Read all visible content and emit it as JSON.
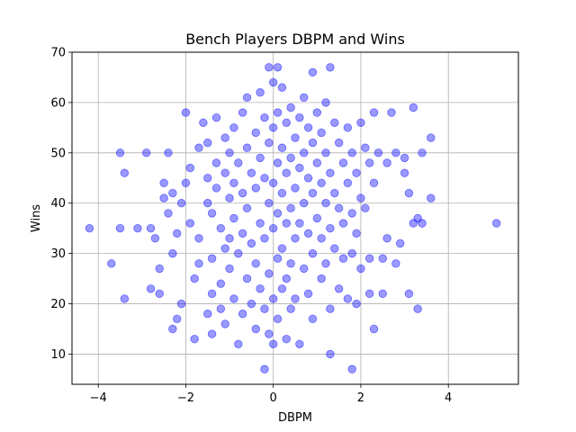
{
  "chart_data": {
    "type": "scatter",
    "title": "Bench Players DBPM and Wins",
    "xlabel": "DBPM",
    "ylabel": "Wins",
    "xlim": [
      -4.6,
      5.6
    ],
    "ylim": [
      4,
      70
    ],
    "xticks": [
      -4,
      -2,
      0,
      2,
      4
    ],
    "yticks": [
      10,
      20,
      30,
      40,
      50,
      60,
      70
    ],
    "grid": true,
    "point_color": "#0000ff",
    "point_opacity": 0.4,
    "points": [
      [
        -4.2,
        35
      ],
      [
        -3.7,
        28
      ],
      [
        -3.5,
        35
      ],
      [
        -3.4,
        21
      ],
      [
        -3.4,
        46
      ],
      [
        -3.5,
        50
      ],
      [
        -3.1,
        35
      ],
      [
        -2.9,
        50
      ],
      [
        -2.8,
        35
      ],
      [
        -2.8,
        23
      ],
      [
        -2.7,
        33
      ],
      [
        -2.6,
        22
      ],
      [
        -2.6,
        27
      ],
      [
        -2.5,
        44
      ],
      [
        -2.5,
        41
      ],
      [
        -2.4,
        38
      ],
      [
        -2.4,
        50
      ],
      [
        -2.3,
        42
      ],
      [
        -2.3,
        30
      ],
      [
        -2.3,
        15
      ],
      [
        -2.2,
        17
      ],
      [
        -2.2,
        34
      ],
      [
        -2.1,
        40
      ],
      [
        -2.1,
        20
      ],
      [
        -2.0,
        44
      ],
      [
        -2.0,
        58
      ],
      [
        -1.9,
        47
      ],
      [
        -1.9,
        36
      ],
      [
        -1.8,
        25
      ],
      [
        -1.8,
        13
      ],
      [
        -1.7,
        51
      ],
      [
        -1.7,
        28
      ],
      [
        -1.7,
        33
      ],
      [
        -1.6,
        56
      ],
      [
        -1.5,
        52
      ],
      [
        -1.5,
        45
      ],
      [
        -1.5,
        40
      ],
      [
        -1.5,
        18
      ],
      [
        -1.4,
        38
      ],
      [
        -1.4,
        29
      ],
      [
        -1.4,
        22
      ],
      [
        -1.4,
        14
      ],
      [
        -1.3,
        57
      ],
      [
        -1.3,
        48
      ],
      [
        -1.3,
        43
      ],
      [
        -1.2,
        35
      ],
      [
        -1.2,
        24
      ],
      [
        -1.2,
        19
      ],
      [
        -1.1,
        53
      ],
      [
        -1.1,
        46
      ],
      [
        -1.1,
        31
      ],
      [
        -1.1,
        16
      ],
      [
        -1.0,
        50
      ],
      [
        -1.0,
        41
      ],
      [
        -1.0,
        27
      ],
      [
        -1.0,
        33
      ],
      [
        -0.9,
        55
      ],
      [
        -0.9,
        44
      ],
      [
        -0.9,
        37
      ],
      [
        -0.9,
        21
      ],
      [
        -0.8,
        48
      ],
      [
        -0.8,
        30
      ],
      [
        -0.8,
        12
      ],
      [
        -0.7,
        58
      ],
      [
        -0.7,
        42
      ],
      [
        -0.7,
        34
      ],
      [
        -0.7,
        18
      ],
      [
        -0.6,
        61
      ],
      [
        -0.6,
        51
      ],
      [
        -0.6,
        39
      ],
      [
        -0.6,
        25
      ],
      [
        -0.5,
        46
      ],
      [
        -0.5,
        32
      ],
      [
        -0.5,
        20
      ],
      [
        -0.4,
        54
      ],
      [
        -0.4,
        43
      ],
      [
        -0.4,
        28
      ],
      [
        -0.4,
        15
      ],
      [
        -0.3,
        62
      ],
      [
        -0.3,
        49
      ],
      [
        -0.3,
        36
      ],
      [
        -0.3,
        23
      ],
      [
        -0.2,
        57
      ],
      [
        -0.2,
        45
      ],
      [
        -0.2,
        33
      ],
      [
        -0.2,
        19
      ],
      [
        -0.1,
        67
      ],
      [
        -0.1,
        52
      ],
      [
        -0.1,
        40
      ],
      [
        -0.1,
        26
      ],
      [
        -0.1,
        14
      ],
      [
        0.0,
        64
      ],
      [
        0.0,
        55
      ],
      [
        0.0,
        44
      ],
      [
        0.0,
        35
      ],
      [
        0.0,
        21
      ],
      [
        0.0,
        12
      ],
      [
        -0.2,
        7
      ],
      [
        0.1,
        67
      ],
      [
        0.1,
        58
      ],
      [
        0.1,
        48
      ],
      [
        0.1,
        38
      ],
      [
        0.1,
        29
      ],
      [
        0.1,
        17
      ],
      [
        0.2,
        63
      ],
      [
        0.2,
        51
      ],
      [
        0.2,
        42
      ],
      [
        0.2,
        31
      ],
      [
        0.2,
        23
      ],
      [
        0.3,
        56
      ],
      [
        0.3,
        46
      ],
      [
        0.3,
        36
      ],
      [
        0.3,
        25
      ],
      [
        0.3,
        13
      ],
      [
        0.4,
        59
      ],
      [
        0.4,
        49
      ],
      [
        0.4,
        39
      ],
      [
        0.4,
        28
      ],
      [
        0.4,
        19
      ],
      [
        0.5,
        53
      ],
      [
        0.5,
        43
      ],
      [
        0.5,
        33
      ],
      [
        0.5,
        21
      ],
      [
        0.6,
        57
      ],
      [
        0.6,
        47
      ],
      [
        0.6,
        36
      ],
      [
        0.6,
        12
      ],
      [
        0.7,
        61
      ],
      [
        0.7,
        50
      ],
      [
        0.7,
        40
      ],
      [
        0.7,
        27
      ],
      [
        0.8,
        55
      ],
      [
        0.8,
        45
      ],
      [
        0.8,
        34
      ],
      [
        0.8,
        22
      ],
      [
        0.9,
        66
      ],
      [
        0.9,
        52
      ],
      [
        0.9,
        42
      ],
      [
        0.9,
        30
      ],
      [
        0.9,
        17
      ],
      [
        1.0,
        58
      ],
      [
        1.0,
        48
      ],
      [
        1.0,
        37
      ],
      [
        1.1,
        54
      ],
      [
        1.1,
        44
      ],
      [
        1.1,
        33
      ],
      [
        1.1,
        25
      ],
      [
        1.2,
        60
      ],
      [
        1.2,
        50
      ],
      [
        1.2,
        40
      ],
      [
        1.2,
        28
      ],
      [
        1.3,
        67
      ],
      [
        1.3,
        46
      ],
      [
        1.3,
        35
      ],
      [
        1.3,
        19
      ],
      [
        1.3,
        10
      ],
      [
        1.4,
        56
      ],
      [
        1.4,
        42
      ],
      [
        1.4,
        31
      ],
      [
        1.5,
        52
      ],
      [
        1.5,
        39
      ],
      [
        1.5,
        23
      ],
      [
        1.6,
        48
      ],
      [
        1.6,
        36
      ],
      [
        1.6,
        29
      ],
      [
        1.7,
        55
      ],
      [
        1.7,
        44
      ],
      [
        1.7,
        21
      ],
      [
        1.8,
        50
      ],
      [
        1.8,
        38
      ],
      [
        1.8,
        30
      ],
      [
        1.8,
        7
      ],
      [
        1.9,
        46
      ],
      [
        1.9,
        34
      ],
      [
        1.9,
        20
      ],
      [
        2.0,
        56
      ],
      [
        2.0,
        41
      ],
      [
        2.0,
        27
      ],
      [
        2.1,
        51
      ],
      [
        2.1,
        39
      ],
      [
        2.2,
        48
      ],
      [
        2.2,
        29
      ],
      [
        2.2,
        22
      ],
      [
        2.3,
        58
      ],
      [
        2.3,
        44
      ],
      [
        2.3,
        15
      ],
      [
        2.4,
        50
      ],
      [
        2.5,
        29
      ],
      [
        2.5,
        22
      ],
      [
        2.6,
        33
      ],
      [
        2.6,
        48
      ],
      [
        2.7,
        58
      ],
      [
        2.8,
        50
      ],
      [
        2.8,
        28
      ],
      [
        2.9,
        32
      ],
      [
        3.0,
        49
      ],
      [
        3.0,
        46
      ],
      [
        3.1,
        42
      ],
      [
        3.1,
        22
      ],
      [
        3.2,
        59
      ],
      [
        3.2,
        36
      ],
      [
        3.3,
        37
      ],
      [
        3.3,
        19
      ],
      [
        3.4,
        36
      ],
      [
        3.4,
        50
      ],
      [
        3.6,
        53
      ],
      [
        3.6,
        41
      ],
      [
        5.1,
        36
      ]
    ]
  }
}
